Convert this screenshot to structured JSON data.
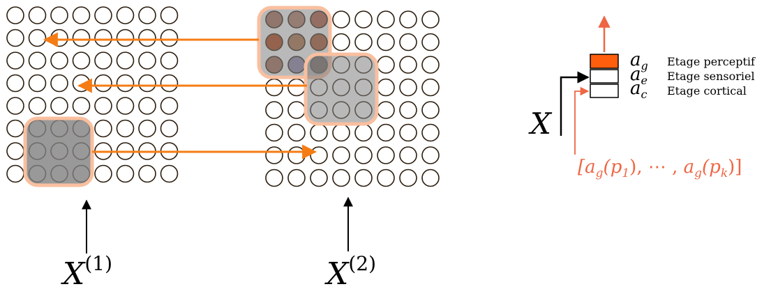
{
  "grids": [
    {
      "id": "grid-1",
      "rows": 8,
      "cols": 8,
      "input_label": {
        "base": "X",
        "sup": "(1)"
      },
      "highlight": {
        "row_start": 5,
        "col_start": 1,
        "rows": 3,
        "cols": 3
      },
      "fills": {}
    },
    {
      "id": "grid-2",
      "rows": 8,
      "cols": 8,
      "input_label": {
        "base": "X",
        "sup": "(2)"
      },
      "fills": {
        "0-0": "#a56a55",
        "0-1": "#b07a66",
        "0-2": "#ad5a3e",
        "1-0": "#ad3e10",
        "1-1": "#ad7048",
        "1-2": "#a85430",
        "2-0": "#a36a56",
        "2-1": "#8c83a8",
        "2-2": "#6e4c44"
      }
    }
  ],
  "colors": {
    "arrow": "#f57c14",
    "highlight_border": "#f9bf9f",
    "highlight_fill": "#808080",
    "perceptual": "#ff5e0d",
    "feedback": "#ee6644",
    "circle_stroke": "#2b1d0e"
  },
  "legend": {
    "layers": [
      {
        "symbol": "a",
        "sub": "g",
        "label": "Etage perceptif"
      },
      {
        "symbol": "a",
        "sub": "e",
        "label": "Etage sensoriel"
      },
      {
        "symbol": "a",
        "sub": "c",
        "label": "Etage cortical"
      }
    ],
    "input_symbol": "X",
    "feedback_label": "[a_g(p_1), ⋯ , a_g(p_k)]"
  }
}
